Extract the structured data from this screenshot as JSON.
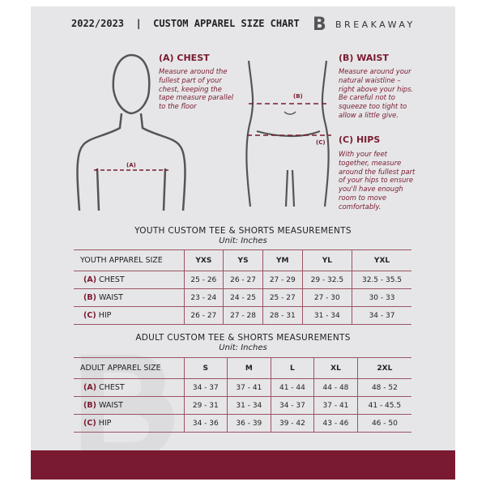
{
  "header": {
    "title": "2022/2023  |  CUSTOM APPAREL SIZE CHART",
    "logo_mark": "B",
    "logo_text": "BREAKAWAY"
  },
  "guides": {
    "chest": {
      "title": "(A) CHEST",
      "text": "Measure around the fullest part of your chest, keeping the tape measure parallel to the floor",
      "marker": "(A)"
    },
    "waist": {
      "title": "(B) WAIST",
      "text": "Measure around your natural waistline – right above your hips. Be careful not to squeeze too tight to allow a little give.",
      "marker": "(B)"
    },
    "hips": {
      "title": "(C) HIPS",
      "text": "With your feet together, measure around the fullest part of your hips to ensure you'll have enough room to move comfortably.",
      "marker": "(C)"
    }
  },
  "youth": {
    "title": "YOUTH CUSTOM TEE & SHORTS MEASUREMENTS",
    "unit": "Unit: Inches",
    "header": [
      "YOUTH APPAREL SIZE",
      "YXS",
      "YS",
      "YM",
      "YL",
      "YXL"
    ],
    "rows": [
      {
        "code": "(A)",
        "name": "CHEST",
        "values": [
          "25 - 26",
          "26 - 27",
          "27 - 29",
          "29 - 32.5",
          "32.5 - 35.5"
        ]
      },
      {
        "code": "(B)",
        "name": "WAIST",
        "values": [
          "23 - 24",
          "24 - 25",
          "25 - 27",
          "27 - 30",
          "30 - 33"
        ]
      },
      {
        "code": "(C)",
        "name": "HIP",
        "values": [
          "26 - 27",
          "27 - 28",
          "28 - 31",
          "31 - 34",
          "34 - 37"
        ]
      }
    ]
  },
  "adult": {
    "title": "ADULT CUSTOM TEE & SHORTS MEASUREMENTS",
    "unit": "Unit: Inches",
    "header": [
      "ADULT APPAREL SIZE",
      "S",
      "M",
      "L",
      "XL",
      "2XL"
    ],
    "rows": [
      {
        "code": "(A)",
        "name": "CHEST",
        "values": [
          "34 - 37",
          "37 - 41",
          "41 - 44",
          "44 - 48",
          "48 - 52"
        ]
      },
      {
        "code": "(B)",
        "name": "WAIST",
        "values": [
          "29 - 31",
          "31 - 34",
          "34 - 37",
          "37 - 41",
          "41 - 45.5"
        ]
      },
      {
        "code": "(C)",
        "name": "HIP",
        "values": [
          "34 - 36",
          "36 - 39",
          "39 - 42",
          "43 - 46",
          "46 - 50"
        ]
      }
    ]
  },
  "colors": {
    "accent": "#7a1a30",
    "panel": "#e6e6e8"
  }
}
